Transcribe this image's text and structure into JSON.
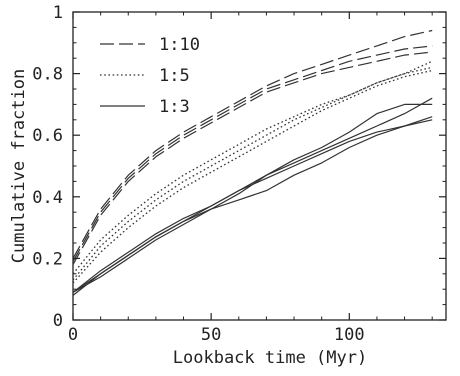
{
  "chart_data": {
    "type": "line",
    "xlabel": "Lookback time (Myr)",
    "ylabel": "Cumulative fraction",
    "xlim": [
      0,
      135
    ],
    "ylim": [
      0,
      1
    ],
    "xticks": [
      0,
      50,
      100
    ],
    "yticks": [
      0,
      0.2,
      0.4,
      0.6,
      0.8,
      1
    ],
    "xtick_labels": [
      "0",
      "50",
      "100"
    ],
    "ytick_labels": [
      "0",
      "0.2",
      "0.4",
      "0.6",
      "0.8",
      "1"
    ],
    "legend_position": "top-left",
    "legend": [
      {
        "label": "1:10",
        "dash": "dashed"
      },
      {
        "label": "1:5",
        "dash": "dotted"
      },
      {
        "label": "1:3",
        "dash": "solid"
      }
    ],
    "x": [
      0,
      10,
      20,
      30,
      40,
      50,
      60,
      70,
      80,
      90,
      100,
      110,
      120,
      130
    ],
    "series": [
      {
        "group": "1:10",
        "dash": "dashed",
        "values": [
          0.2,
          0.36,
          0.47,
          0.55,
          0.61,
          0.66,
          0.71,
          0.76,
          0.8,
          0.83,
          0.86,
          0.89,
          0.92,
          0.94
        ]
      },
      {
        "group": "1:10",
        "dash": "dashed",
        "values": [
          0.19,
          0.35,
          0.46,
          0.54,
          0.6,
          0.65,
          0.7,
          0.75,
          0.78,
          0.81,
          0.84,
          0.86,
          0.88,
          0.89
        ]
      },
      {
        "group": "1:10",
        "dash": "dashed",
        "values": [
          0.18,
          0.34,
          0.45,
          0.53,
          0.59,
          0.64,
          0.69,
          0.74,
          0.77,
          0.8,
          0.82,
          0.84,
          0.86,
          0.87
        ]
      },
      {
        "group": "1:5",
        "dash": "dotted",
        "values": [
          0.15,
          0.26,
          0.34,
          0.41,
          0.47,
          0.52,
          0.57,
          0.62,
          0.66,
          0.7,
          0.73,
          0.77,
          0.8,
          0.84
        ]
      },
      {
        "group": "1:5",
        "dash": "dotted",
        "values": [
          0.13,
          0.24,
          0.32,
          0.39,
          0.45,
          0.5,
          0.55,
          0.6,
          0.65,
          0.69,
          0.73,
          0.77,
          0.8,
          0.82
        ]
      },
      {
        "group": "1:5",
        "dash": "dotted",
        "values": [
          0.12,
          0.22,
          0.3,
          0.37,
          0.43,
          0.48,
          0.53,
          0.58,
          0.63,
          0.68,
          0.72,
          0.76,
          0.79,
          0.81
        ]
      },
      {
        "group": "1:3",
        "dash": "solid",
        "values": [
          0.09,
          0.15,
          0.21,
          0.27,
          0.32,
          0.37,
          0.42,
          0.47,
          0.51,
          0.55,
          0.59,
          0.63,
          0.67,
          0.72
        ]
      },
      {
        "group": "1:3",
        "dash": "solid",
        "values": [
          0.09,
          0.14,
          0.2,
          0.26,
          0.31,
          0.36,
          0.41,
          0.47,
          0.52,
          0.56,
          0.61,
          0.67,
          0.7,
          0.7
        ]
      },
      {
        "group": "1:3",
        "dash": "solid",
        "values": [
          0.08,
          0.15,
          0.21,
          0.27,
          0.32,
          0.36,
          0.39,
          0.42,
          0.47,
          0.51,
          0.56,
          0.6,
          0.63,
          0.66
        ]
      },
      {
        "group": "1:3",
        "dash": "solid",
        "values": [
          0.09,
          0.16,
          0.22,
          0.28,
          0.33,
          0.37,
          0.42,
          0.46,
          0.5,
          0.54,
          0.58,
          0.61,
          0.63,
          0.65
        ]
      }
    ]
  }
}
